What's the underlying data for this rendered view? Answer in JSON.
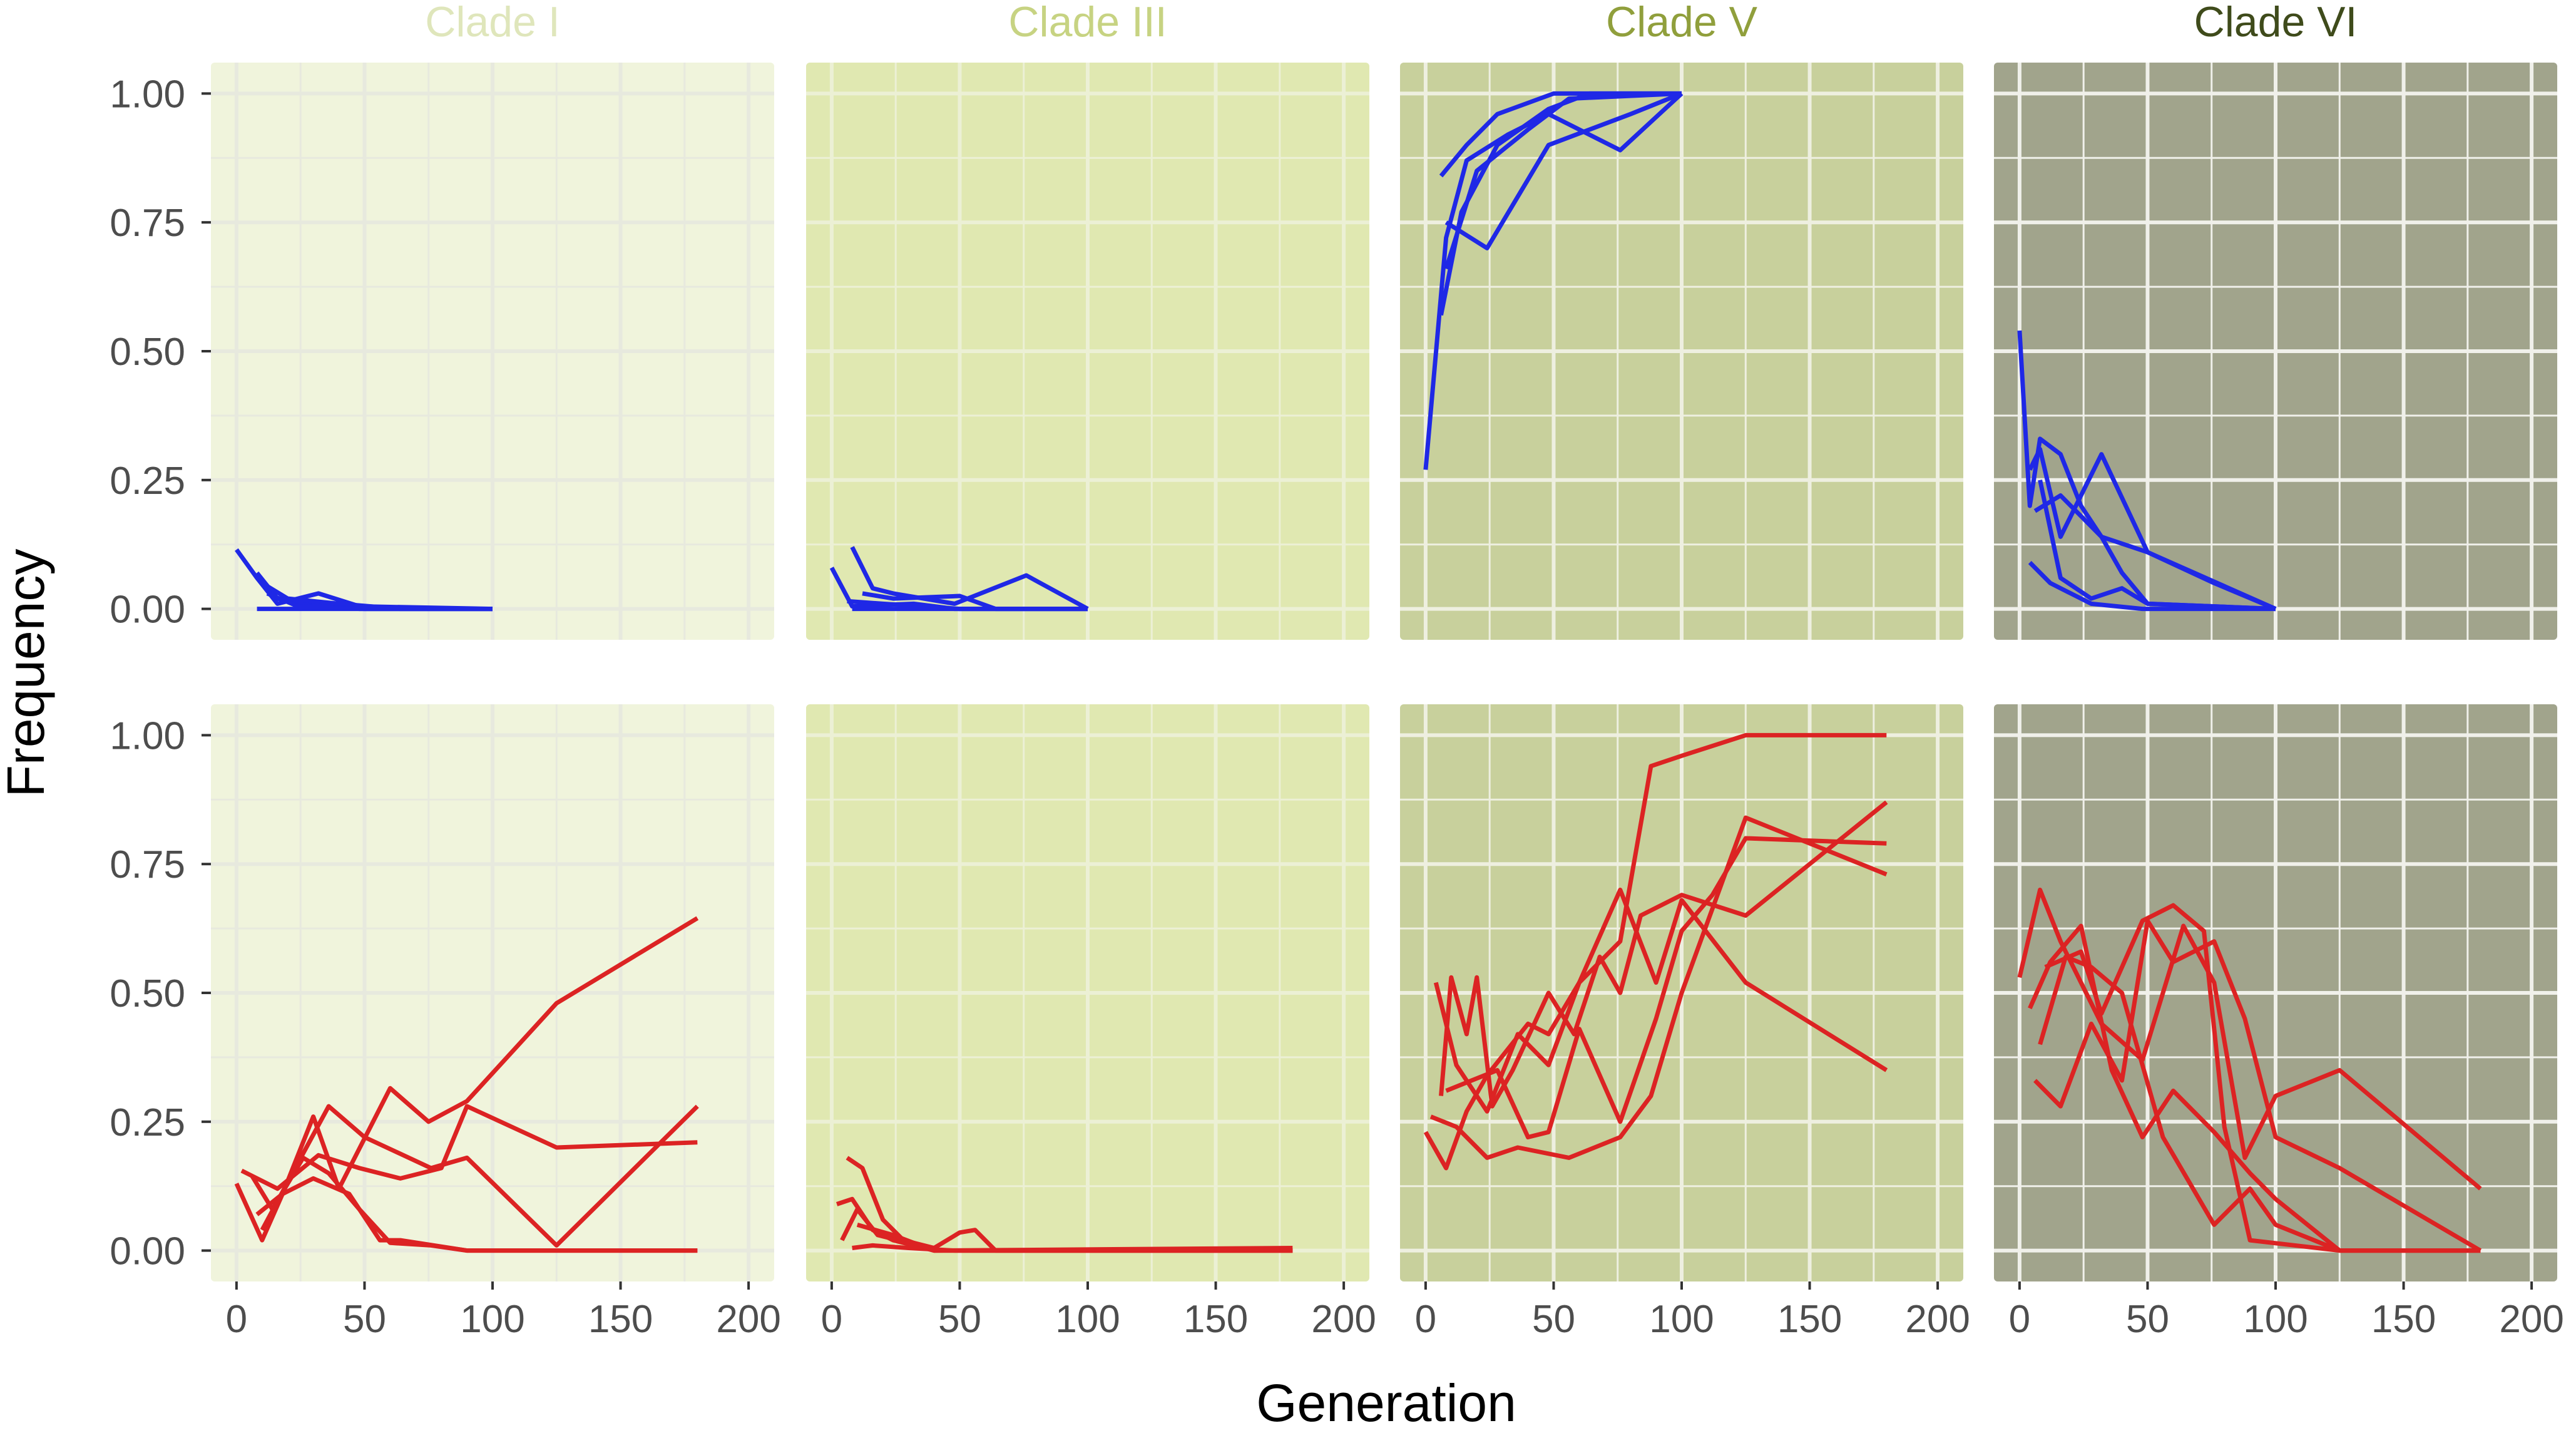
{
  "chart_data": {
    "type": "line",
    "title": "",
    "xlabel": "Generation",
    "ylabel": "Frequency",
    "xlim": [
      -10,
      210
    ],
    "ylim": [
      -0.06,
      1.06
    ],
    "xticks": [
      0,
      50,
      100,
      150,
      200
    ],
    "xtick_labels": [
      "0",
      "50",
      "100",
      "150",
      "200"
    ],
    "yticks": [
      0,
      0.25,
      0.5,
      0.75,
      1
    ],
    "ytick_labels": [
      "0.00",
      "0.25",
      "0.50",
      "0.75",
      "1.00"
    ],
    "grid": true,
    "rows": [
      {
        "name": "blue",
        "color": "#1f28e6"
      },
      {
        "name": "red",
        "color": "#dc2323"
      }
    ],
    "panels": [
      {
        "clade": "Clade  I",
        "title_color": "#dfe6bb",
        "background": "#f0f4dc",
        "grid_color": "#e7e9de",
        "blue": [
          {
            "x": [
              0,
              8,
              16,
              32,
              48,
              100
            ],
            "y": [
              0.115,
              0.06,
              0.01,
              0.03,
              0.005,
              0
            ]
          },
          {
            "x": [
              8,
              16,
              24,
              48,
              100
            ],
            "y": [
              0.07,
              0.02,
              0.01,
              0,
              0
            ]
          },
          {
            "x": [
              10,
              20,
              40,
              64,
              100
            ],
            "y": [
              0.05,
              0.02,
              0.01,
              0,
              0
            ]
          },
          {
            "x": [
              12,
              24,
              50,
              100
            ],
            "y": [
              0.03,
              0.005,
              0,
              0
            ]
          },
          {
            "x": [
              8,
              40,
              100
            ],
            "y": [
              0,
              0,
              0
            ]
          }
        ],
        "red": [
          {
            "x": [
              0,
              10,
              18,
              30,
              40,
              60,
              75,
              90,
              125,
              180
            ],
            "y": [
              0.13,
              0.02,
              0.11,
              0.26,
              0.12,
              0.315,
              0.25,
              0.29,
              0.48,
              0.645
            ]
          },
          {
            "x": [
              2,
              16,
              32,
              48,
              64,
              80,
              90,
              125,
              180
            ],
            "y": [
              0.155,
              0.12,
              0.185,
              0.16,
              0.14,
              0.16,
              0.28,
              0.2,
              0.21
            ]
          },
          {
            "x": [
              6,
              14,
              26,
              36,
              48,
              60,
              76,
              90,
              125,
              180
            ],
            "y": [
              0.145,
              0.08,
              0.18,
              0.15,
              0.08,
              0.015,
              0.01,
              0,
              0,
              0
            ]
          },
          {
            "x": [
              8,
              18,
              30,
              44,
              56,
              64,
              90,
              125,
              180
            ],
            "y": [
              0.07,
              0.11,
              0.14,
              0.11,
              0.02,
              0.02,
              0,
              0,
              0
            ]
          },
          {
            "x": [
              10,
              24,
              36,
              50,
              76,
              90,
              125,
              180
            ],
            "y": [
              0.04,
              0.17,
              0.28,
              0.22,
              0.16,
              0.18,
              0.01,
              0.28
            ]
          }
        ]
      },
      {
        "clade": "Clade  III",
        "title_color": "#c7d382",
        "background": "#e0e8b1",
        "grid_color": "#ecf0d5",
        "blue": [
          {
            "x": [
              0,
              8,
              32,
              48,
              64,
              100
            ],
            "y": [
              0.08,
              0.005,
              0.01,
              0,
              0,
              0
            ]
          },
          {
            "x": [
              8,
              16,
              24,
              48,
              76,
              100
            ],
            "y": [
              0.12,
              0.04,
              0.03,
              0.01,
              0.065,
              0
            ]
          },
          {
            "x": [
              12,
              24,
              50,
              64,
              100
            ],
            "y": [
              0.03,
              0.02,
              0.025,
              0,
              0
            ]
          },
          {
            "x": [
              6,
              20,
              50,
              100
            ],
            "y": [
              0.015,
              0.01,
              0,
              0
            ]
          },
          {
            "x": [
              8,
              100
            ],
            "y": [
              0,
              0
            ]
          }
        ],
        "red": [
          {
            "x": [
              2,
              8,
              16,
              24,
              32,
              40,
              180
            ],
            "y": [
              0.09,
              0.1,
              0.04,
              0.02,
              0.01,
              0,
              0
            ]
          },
          {
            "x": [
              6,
              12,
              20,
              28,
              40,
              50,
              56,
              64,
              80,
              180
            ],
            "y": [
              0.18,
              0.16,
              0.06,
              0.02,
              0.005,
              0.035,
              0.04,
              0,
              0,
              0
            ]
          },
          {
            "x": [
              4,
              10,
              18,
              26,
              40,
              180
            ],
            "y": [
              0.02,
              0.08,
              0.03,
              0.02,
              0,
              0
            ]
          },
          {
            "x": [
              8,
              16,
              30,
              48,
              180
            ],
            "y": [
              0.005,
              0.01,
              0.005,
              0,
              0
            ]
          },
          {
            "x": [
              10,
              24,
              40,
              180
            ],
            "y": [
              0.05,
              0.03,
              0,
              0.005
            ]
          }
        ]
      },
      {
        "clade": "Clade  V",
        "title_color": "#909f3c",
        "background": "#c8d09c",
        "grid_color": "#eeefe0",
        "blue": [
          {
            "x": [
              0,
              8,
              16,
              32,
              48,
              76,
              100
            ],
            "y": [
              0.27,
              0.72,
              0.87,
              0.92,
              0.96,
              0.89,
              1
            ]
          },
          {
            "x": [
              6,
              14,
              28,
              48,
              64,
              100
            ],
            "y": [
              0.57,
              0.77,
              0.9,
              0.97,
              1,
              1
            ]
          },
          {
            "x": [
              8,
              20,
              40,
              56,
              100
            ],
            "y": [
              0.66,
              0.85,
              0.93,
              0.99,
              1
            ]
          },
          {
            "x": [
              8,
              24,
              48,
              80,
              100
            ],
            "y": [
              0.75,
              0.7,
              0.9,
              0.96,
              1
            ]
          },
          {
            "x": [
              6,
              16,
              28,
              50,
              100
            ],
            "y": [
              0.84,
              0.9,
              0.96,
              1,
              1
            ]
          }
        ],
        "red": [
          {
            "x": [
              0,
              8,
              16,
              24,
              32,
              40,
              48,
              60,
              76,
              88,
              100,
              125,
              180
            ],
            "y": [
              0.23,
              0.16,
              0.27,
              0.34,
              0.39,
              0.44,
              0.42,
              0.52,
              0.6,
              0.94,
              0.96,
              1,
              1
            ]
          },
          {
            "x": [
              6,
              10,
              16,
              20,
              26,
              34,
              48,
              58,
              68,
              76,
              84,
              100,
              125,
              180
            ],
            "y": [
              0.3,
              0.53,
              0.42,
              0.53,
              0.28,
              0.35,
              0.5,
              0.42,
              0.57,
              0.5,
              0.65,
              0.69,
              0.65,
              0.87
            ]
          },
          {
            "x": [
              4,
              12,
              24,
              36,
              48,
              60,
              76,
              90,
              100,
              125,
              180
            ],
            "y": [
              0.52,
              0.36,
              0.27,
              0.42,
              0.36,
              0.52,
              0.7,
              0.52,
              0.68,
              0.52,
              0.35
            ]
          },
          {
            "x": [
              2,
              12,
              24,
              36,
              56,
              76,
              88,
              100,
              125,
              180
            ],
            "y": [
              0.26,
              0.24,
              0.18,
              0.2,
              0.18,
              0.22,
              0.3,
              0.5,
              0.84,
              0.73
            ]
          },
          {
            "x": [
              8,
              18,
              28,
              40,
              48,
              60,
              76,
              90,
              100,
              112,
              125,
              180
            ],
            "y": [
              0.31,
              0.33,
              0.35,
              0.22,
              0.23,
              0.43,
              0.25,
              0.45,
              0.62,
              0.69,
              0.8,
              0.79
            ]
          }
        ]
      },
      {
        "clade": "Clade  VI",
        "title_color": "#3f4b1b",
        "background": "#a1a48c",
        "grid_color": "#f0f0ea",
        "blue": [
          {
            "x": [
              0,
              4,
              8,
              16,
              24,
              32,
              50,
              76,
              100
            ],
            "y": [
              0.54,
              0.2,
              0.33,
              0.3,
              0.2,
              0.14,
              0.11,
              0.05,
              0
            ]
          },
          {
            "x": [
              4,
              8,
              16,
              32,
              50,
              100
            ],
            "y": [
              0.27,
              0.31,
              0.14,
              0.3,
              0.11,
              0
            ]
          },
          {
            "x": [
              6,
              16,
              32,
              40,
              50,
              100
            ],
            "y": [
              0.19,
              0.22,
              0.14,
              0.07,
              0.01,
              0
            ]
          },
          {
            "x": [
              4,
              12,
              20,
              28,
              48,
              64,
              80,
              100
            ],
            "y": [
              0.09,
              0.05,
              0.03,
              0.01,
              0,
              0,
              0,
              0
            ]
          },
          {
            "x": [
              8,
              16,
              28,
              40,
              50,
              100
            ],
            "y": [
              0.25,
              0.06,
              0.02,
              0.04,
              0.01,
              0
            ]
          }
        ],
        "red": [
          {
            "x": [
              0,
              8,
              16,
              32,
              48,
              64,
              76,
              88,
              100,
              125,
              180
            ],
            "y": [
              0.53,
              0.7,
              0.6,
              0.44,
              0.37,
              0.63,
              0.52,
              0.18,
              0.3,
              0.35,
              0.12
            ]
          },
          {
            "x": [
              4,
              12,
              24,
              36,
              48,
              60,
              76,
              90,
              100,
              125,
              180
            ],
            "y": [
              0.47,
              0.56,
              0.63,
              0.35,
              0.22,
              0.31,
              0.23,
              0.15,
              0.1,
              0,
              0
            ]
          },
          {
            "x": [
              6,
              16,
              28,
              40,
              50,
              60,
              76,
              88,
              100,
              125,
              180
            ],
            "y": [
              0.33,
              0.28,
              0.44,
              0.33,
              0.64,
              0.56,
              0.6,
              0.45,
              0.22,
              0.16,
              0
            ]
          },
          {
            "x": [
              8,
              18,
              28,
              40,
              56,
              76,
              90,
              100,
              125,
              180
            ],
            "y": [
              0.4,
              0.57,
              0.55,
              0.5,
              0.22,
              0.05,
              0.12,
              0.05,
              0,
              0
            ]
          },
          {
            "x": [
              10,
              24,
              32,
              48,
              60,
              72,
              80,
              90,
              125,
              180
            ],
            "y": [
              0.55,
              0.58,
              0.46,
              0.64,
              0.67,
              0.62,
              0.24,
              0.02,
              0,
              0
            ]
          }
        ]
      }
    ]
  }
}
